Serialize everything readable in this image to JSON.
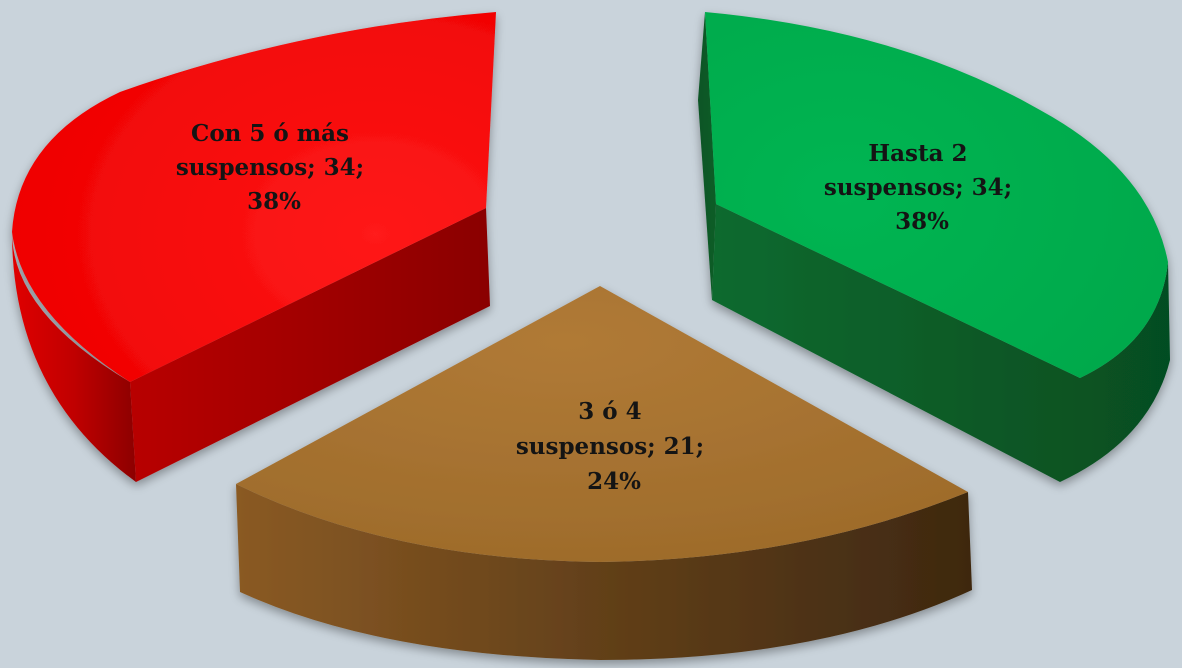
{
  "chart_data": {
    "type": "pie",
    "style": "3d-exploded",
    "slices": [
      {
        "category": "Con 5 ó más suspensos",
        "value": 34,
        "percent": 38,
        "label_lines": [
          "Con 5 ó más",
          "suspensos; 34;",
          "38%"
        ],
        "color": "#ff0000"
      },
      {
        "category": "Hasta 2 suspensos",
        "value": 34,
        "percent": 38,
        "label_lines": [
          "Hasta 2",
          "suspensos; 34;",
          "38%"
        ],
        "color": "#00b050"
      },
      {
        "category": "3 ó 4 suspensos",
        "value": 21,
        "percent": 24,
        "label_lines": [
          "3 ó 4",
          "suspensos; 21;",
          "24%"
        ],
        "color": "#a6702e"
      }
    ],
    "legend": "none",
    "background": "#c9d3db"
  }
}
